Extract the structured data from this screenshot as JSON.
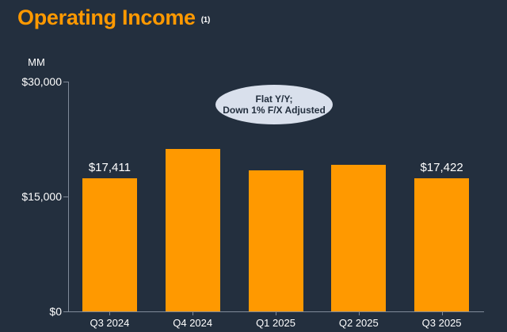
{
  "title": {
    "text": "Operating Income",
    "footnote_marker": "(1)"
  },
  "annotation": {
    "line1": "Flat Y/Y;",
    "line2": "Down 1% F/X Adjusted"
  },
  "y_axis": {
    "unit_label": "MM",
    "ticks": [
      {
        "label": "$30,000",
        "value": 30000
      },
      {
        "label": "$15,000",
        "value": 15000
      },
      {
        "label": "$0",
        "value": 0
      }
    ]
  },
  "chart_data": {
    "type": "bar",
    "title": "Operating Income",
    "ylabel": "MM",
    "xlabel": "",
    "categories": [
      "Q3 2024",
      "Q4 2024",
      "Q1 2025",
      "Q2 2025",
      "Q3 2025"
    ],
    "values": [
      17411,
      21203,
      18405,
      19167,
      17422
    ],
    "data_labels": [
      "$17,411",
      "",
      "",
      "",
      "$17,422"
    ],
    "ylim": [
      0,
      30000
    ],
    "grid": false,
    "legend": false,
    "annotation": "Flat Y/Y; Down 1% F/X Adjusted"
  },
  "colors": {
    "background": "#232F3E",
    "bar": "#FF9900",
    "accent": "#FF9900",
    "text": "#FFFFFF",
    "axis": "#808A99",
    "callout_fill": "#D9E0EC",
    "callout_text": "#232F3E"
  }
}
